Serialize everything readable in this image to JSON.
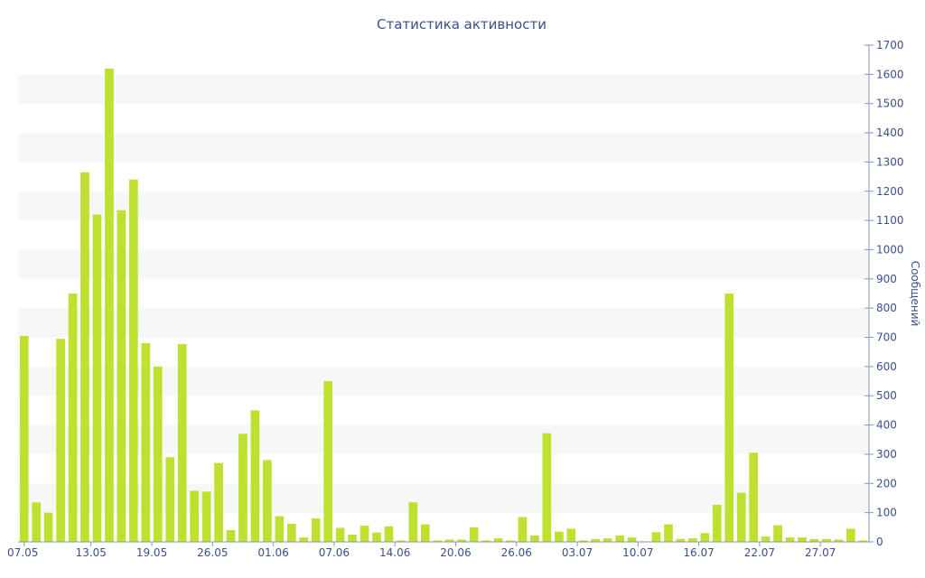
{
  "chart_data": {
    "type": "bar",
    "title": "Статистика активности",
    "xlabel": "",
    "ylabel": "Сообщений",
    "y_axis_side": "right",
    "ylim": [
      0,
      1700
    ],
    "y_ticks": [
      0,
      100,
      200,
      300,
      400,
      500,
      600,
      700,
      800,
      900,
      1000,
      1100,
      1200,
      1300,
      1400,
      1500,
      1600,
      1700
    ],
    "grid": "alternating horizontal bands",
    "x_tick_labels": [
      {
        "label": "07.05",
        "index": 0
      },
      {
        "label": "13.05",
        "index": 5.5
      },
      {
        "label": "19.05",
        "index": 10.5
      },
      {
        "label": "26.05",
        "index": 15.5
      },
      {
        "label": "01.06",
        "index": 20.5
      },
      {
        "label": "07.06",
        "index": 25.5
      },
      {
        "label": "14.06",
        "index": 30.5
      },
      {
        "label": "20.06",
        "index": 35.5
      },
      {
        "label": "26.06",
        "index": 40.5
      },
      {
        "label": "03.07",
        "index": 45.5
      },
      {
        "label": "10.07",
        "index": 50.5
      },
      {
        "label": "16.07",
        "index": 55.5
      },
      {
        "label": "22.07",
        "index": 60.5
      },
      {
        "label": "27.07",
        "index": 65.5
      }
    ],
    "values": [
      705,
      135,
      100,
      695,
      850,
      1265,
      1120,
      1620,
      1135,
      1240,
      680,
      600,
      290,
      677,
      175,
      172,
      270,
      40,
      370,
      450,
      280,
      88,
      62,
      15,
      80,
      550,
      48,
      25,
      55,
      32,
      53,
      5,
      135,
      60,
      5,
      8,
      8,
      50,
      5,
      12,
      5,
      85,
      22,
      372,
      35,
      45,
      5,
      10,
      12,
      22,
      15,
      2,
      33,
      60,
      10,
      12,
      30,
      127,
      850,
      168,
      305,
      18,
      57,
      15,
      15,
      10,
      10,
      8,
      45,
      5
    ],
    "colors": {
      "bar": "#bde12e",
      "band": "#f7f7f7",
      "text": "#3b4f8c",
      "axis": "#8a96b0"
    }
  }
}
